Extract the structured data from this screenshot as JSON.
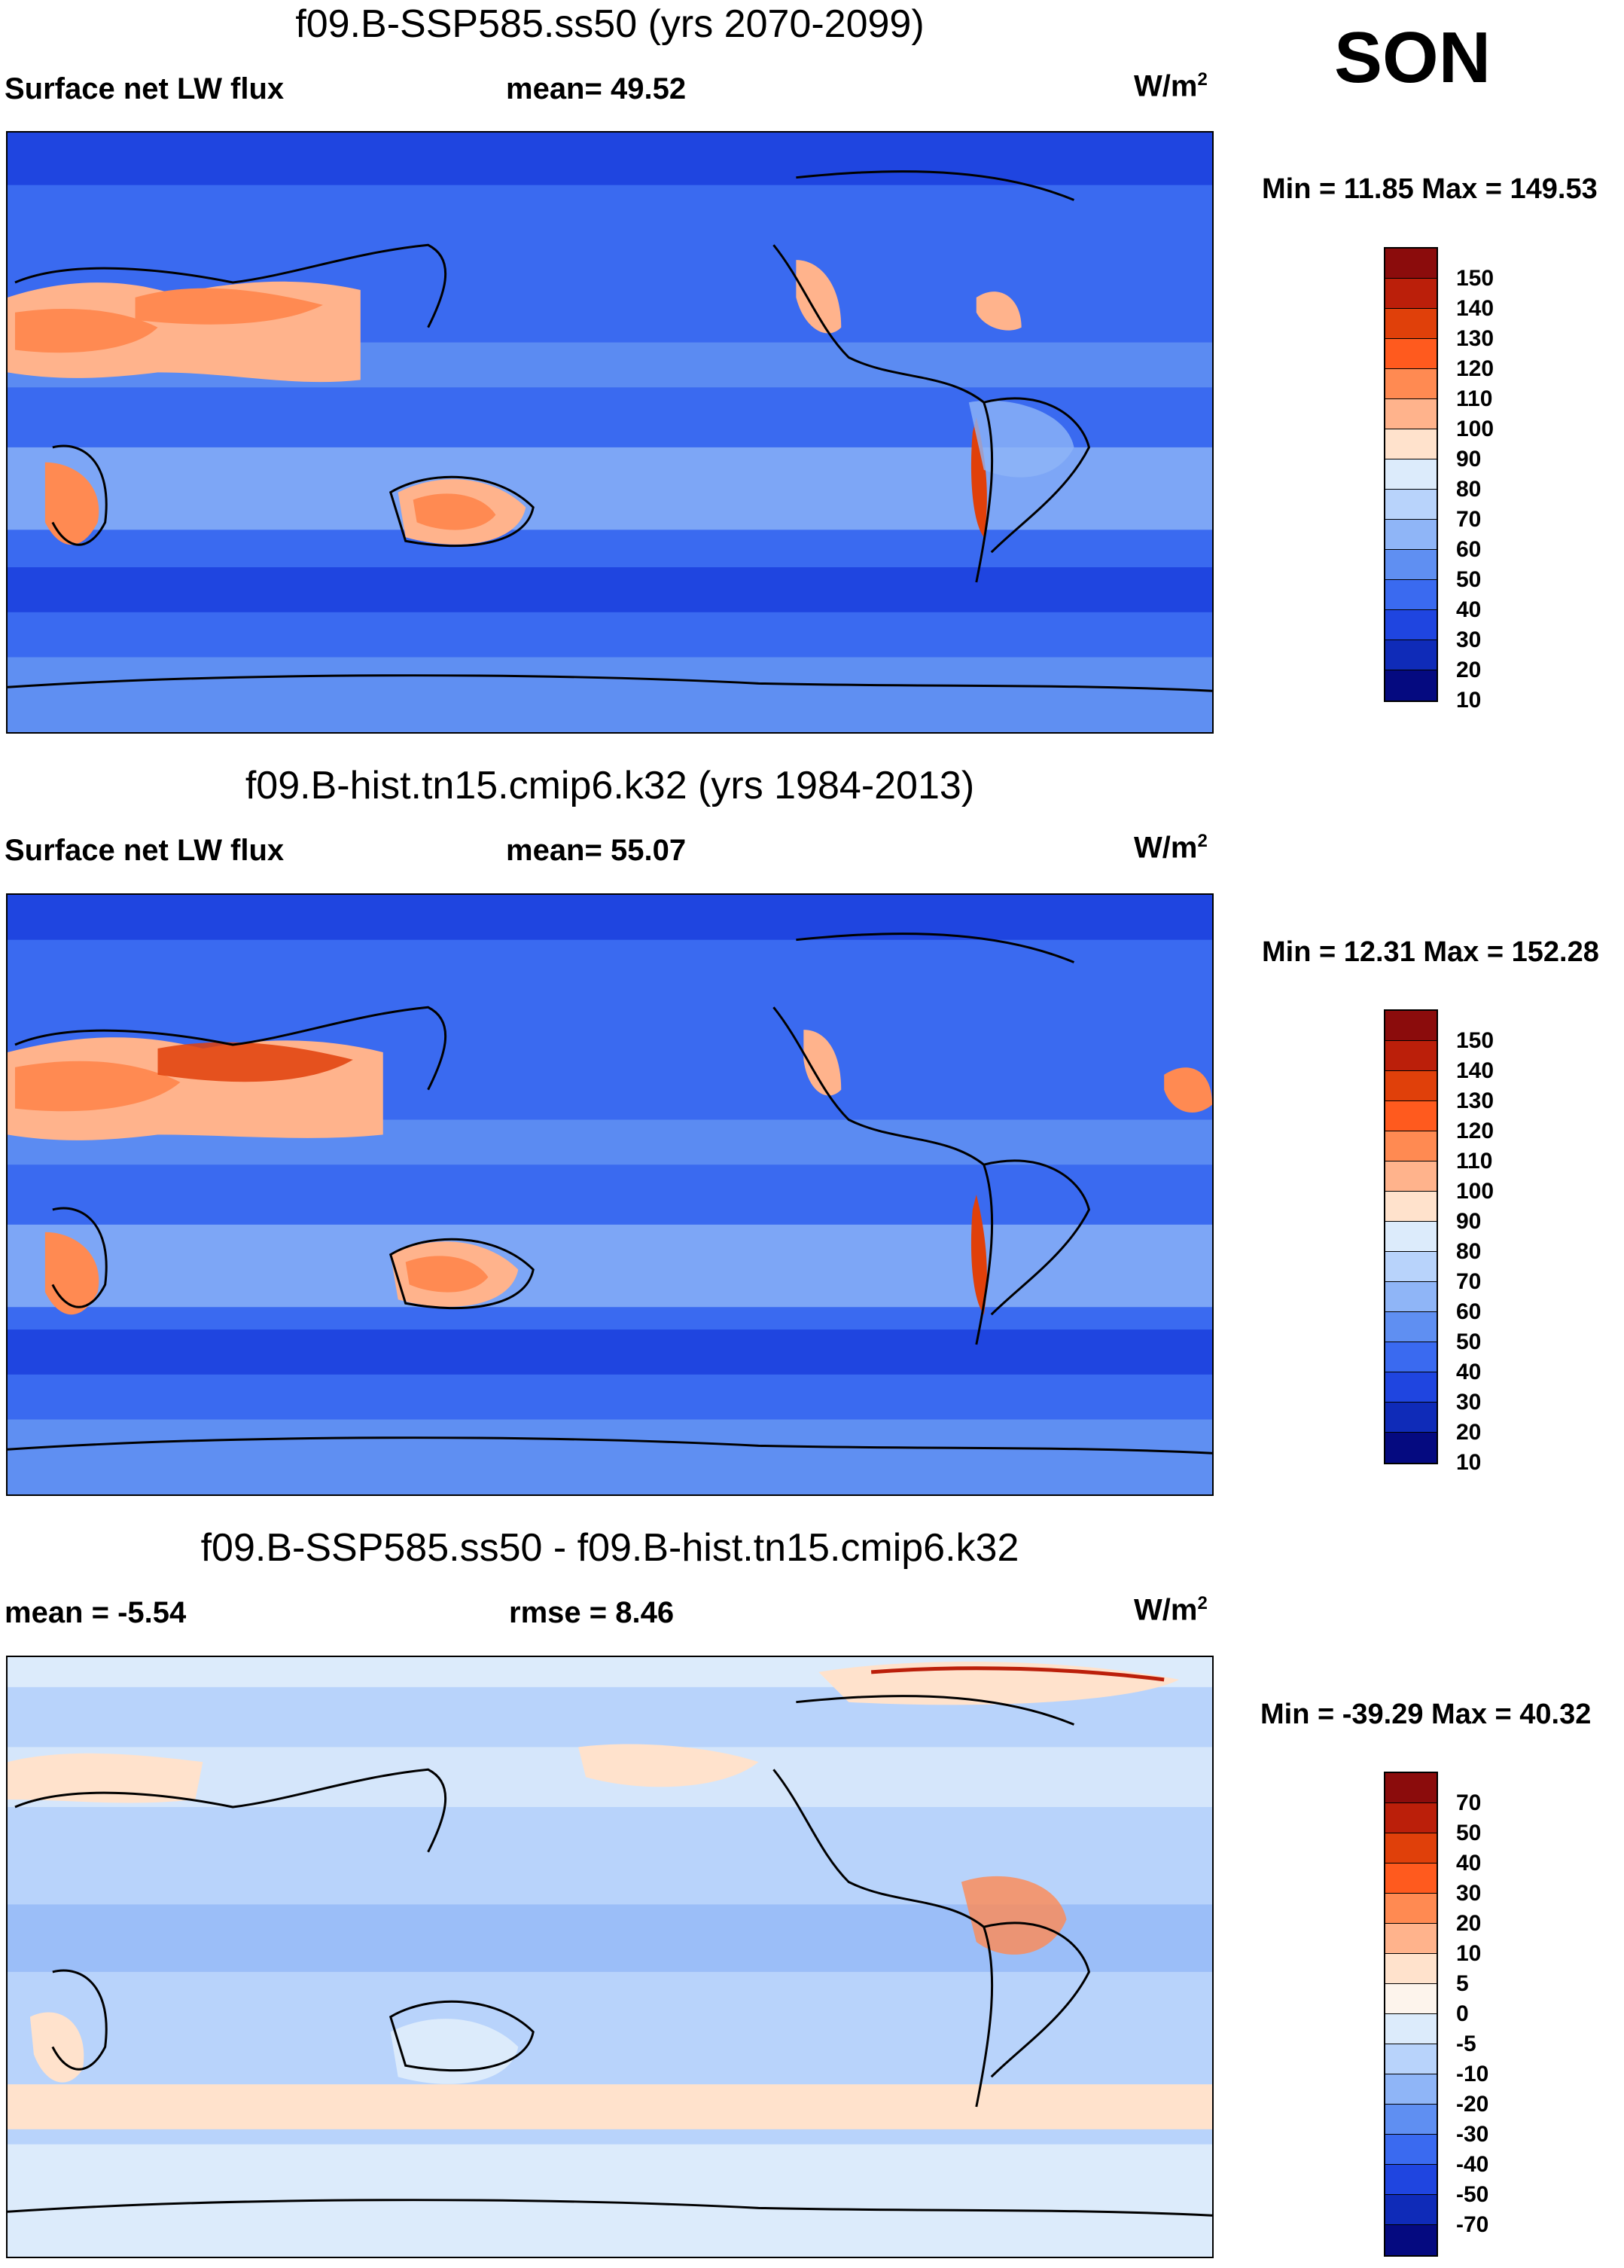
{
  "season": "SON",
  "panels": [
    {
      "title": "f09.B-SSP585.ss50 (yrs 2070-2099)",
      "left_label": "Surface net LW flux",
      "center_label": "mean=  49.52",
      "units_base": "W/m",
      "units_exp": "2",
      "minmax": "Min =  11.85 Max = 149.53",
      "colorbar": {
        "colors": [
          "#8b0c0c",
          "#bb1f0a",
          "#e0400a",
          "#ff5a1e",
          "#ff8a52",
          "#ffb38c",
          "#ffe2cc",
          "#dcebfb",
          "#b8d3fb",
          "#8fb5f7",
          "#5f8ff2",
          "#3a6af0",
          "#1f45e0",
          "#0f2bb8",
          "#050a80"
        ],
        "labels": [
          "150",
          "140",
          "130",
          "120",
          "110",
          "100",
          "90",
          "80",
          "70",
          "60",
          "50",
          "40",
          "30",
          "20",
          "10"
        ]
      }
    },
    {
      "title": "f09.B-hist.tn15.cmip6.k32 (yrs 1984-2013)",
      "left_label": "Surface net LW flux",
      "center_label": "mean=  55.07",
      "units_base": "W/m",
      "units_exp": "2",
      "minmax": "Min =  12.31 Max = 152.28",
      "colorbar": {
        "colors": [
          "#8b0c0c",
          "#bb1f0a",
          "#e0400a",
          "#ff5a1e",
          "#ff8a52",
          "#ffb38c",
          "#ffe2cc",
          "#dcebfb",
          "#b8d3fb",
          "#8fb5f7",
          "#5f8ff2",
          "#3a6af0",
          "#1f45e0",
          "#0f2bb8",
          "#050a80"
        ],
        "labels": [
          "150",
          "140",
          "130",
          "120",
          "110",
          "100",
          "90",
          "80",
          "70",
          "60",
          "50",
          "40",
          "30",
          "20",
          "10"
        ]
      }
    },
    {
      "title": "f09.B-SSP585.ss50 - f09.B-hist.tn15.cmip6.k32",
      "left_label": "mean =  -5.54",
      "center_label": "rmse =    8.46",
      "units_base": "W/m",
      "units_exp": "2",
      "minmax": "Min = -39.29 Max =  40.32",
      "colorbar": {
        "colors": [
          "#8b0c0c",
          "#bb1f0a",
          "#e0400a",
          "#ff5a1e",
          "#ff8a52",
          "#ffb38c",
          "#ffe2cc",
          "#fdf4ec",
          "#dcebfb",
          "#b8d3fb",
          "#8fb5f7",
          "#5f8ff2",
          "#3a6af0",
          "#1f45e0",
          "#0f2bb8",
          "#050a80"
        ],
        "labels": [
          "70",
          "50",
          "40",
          "30",
          "20",
          "10",
          "5",
          "0",
          "-5",
          "-10",
          "-20",
          "-30",
          "-40",
          "-50",
          "-70"
        ]
      }
    }
  ],
  "colors": {
    "ocean_base_1": "#3a6af0",
    "ocean_base_2": "#3a6af0",
    "ocean_base_3": "#dcebfb",
    "desert_hot": "#ff8a52",
    "desert_core": "#e0400a",
    "coast": "#000000"
  }
}
